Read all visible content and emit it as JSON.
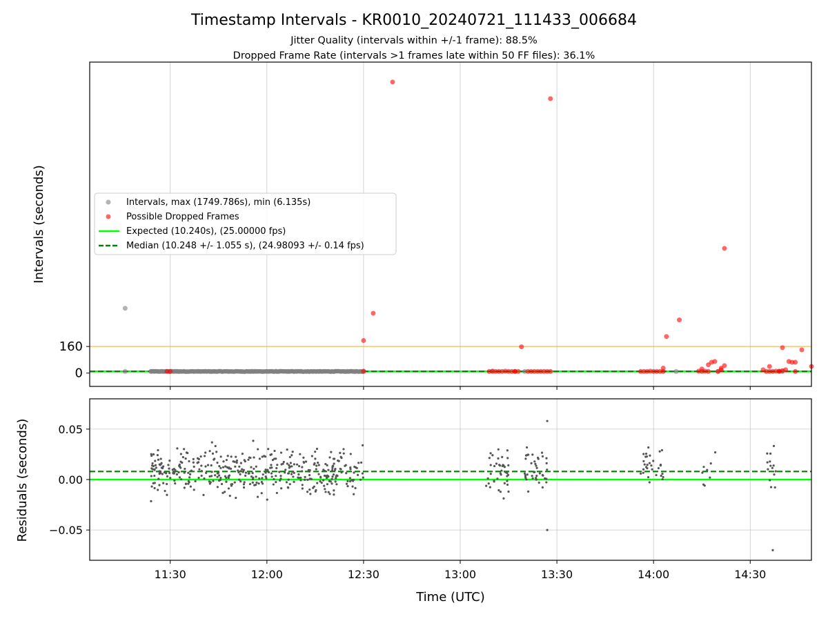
{
  "chart_data": {
    "title": "Timestamp Intervals - KR0010_20240721_111433_006684",
    "subtitle_lines": [
      "Jitter Quality (intervals within +/-1 frame): 88.5%",
      "Dropped Frame Rate (intervals >1 frames late within 50 FF files): 36.1%"
    ],
    "xlabel": "Time (UTC)",
    "xtick_labels": [
      "11:30",
      "12:00",
      "12:30",
      "13:00",
      "13:30",
      "14:00",
      "14:30"
    ],
    "xlim": [
      "11:05",
      "14:49"
    ],
    "grid": true,
    "colors": {
      "intervals": "#808080",
      "dropped": "#ff0000",
      "expected": "#00ff00",
      "median": "#008000",
      "threshold": "#ffa500",
      "residuals": "#555555"
    },
    "top": {
      "type": "scatter",
      "ylabel": "Intervals (seconds)",
      "yticks": [
        0,
        160
      ],
      "ylim": [
        -80,
        1870
      ],
      "threshold_line": 160,
      "expected_line": 10.24,
      "median_line": 10.248,
      "legend_position": "center-left",
      "legend": [
        "Intervals, max (1749.786s), min (6.135s)",
        "Possible Dropped Frames",
        "Expected (10.240s), (25.00000 fps)",
        "Median (10.248 +/- 1.055 s), (24.98093 +/- 0.14 fps)"
      ],
      "series": [
        {
          "name": "Intervals, max (1749.786s), min (6.135s)",
          "points": [
            [
              "11:16",
              390
            ],
            [
              "11:16",
              10
            ],
            [
              "11:24",
              10
            ],
            [
              "11:30",
              10
            ],
            [
              "12:00",
              10
            ],
            [
              "12:30",
              10
            ],
            [
              "13:10",
              10
            ],
            [
              "13:20",
              10
            ],
            [
              "14:07",
              10
            ],
            [
              "14:20",
              10
            ],
            [
              "14:40",
              10
            ]
          ]
        },
        {
          "name": "Possible Dropped Frames",
          "points": [
            [
              "11:29",
              10
            ],
            [
              "11:30",
              10
            ],
            [
              "12:30",
              196
            ],
            [
              "12:30",
              12
            ],
            [
              "12:33",
              360
            ],
            [
              "12:39",
              1750
            ],
            [
              "13:09",
              10
            ],
            [
              "13:10",
              12
            ],
            [
              "13:11",
              10
            ],
            [
              "13:12",
              10
            ],
            [
              "13:13",
              10
            ],
            [
              "13:14",
              12
            ],
            [
              "13:15",
              10
            ],
            [
              "13:16",
              10
            ],
            [
              "13:17",
              10
            ],
            [
              "13:17",
              10
            ],
            [
              "13:18",
              10
            ],
            [
              "13:19",
              158
            ],
            [
              "13:21",
              10
            ],
            [
              "13:22",
              10
            ],
            [
              "13:23",
              10
            ],
            [
              "13:24",
              10
            ],
            [
              "13:25",
              10
            ],
            [
              "13:26",
              10
            ],
            [
              "13:27",
              10
            ],
            [
              "13:28",
              10
            ],
            [
              "13:28",
              1650
            ],
            [
              "13:56",
              10
            ],
            [
              "13:57",
              10
            ],
            [
              "13:58",
              10
            ],
            [
              "13:59",
              12
            ],
            [
              "14:00",
              10
            ],
            [
              "14:01",
              10
            ],
            [
              "14:02",
              10
            ],
            [
              "14:03",
              10
            ],
            [
              "14:03",
              30
            ],
            [
              "14:04",
              220
            ],
            [
              "14:08",
              320
            ],
            [
              "14:14",
              12
            ],
            [
              "14:15",
              25
            ],
            [
              "14:15",
              10
            ],
            [
              "14:16",
              12
            ],
            [
              "14:17",
              10
            ],
            [
              "14:17",
              50
            ],
            [
              "14:18",
              65
            ],
            [
              "14:19",
              70
            ],
            [
              "14:20",
              10
            ],
            [
              "14:21",
              20
            ],
            [
              "14:21",
              30
            ],
            [
              "14:22",
              45
            ],
            [
              "14:22",
              750
            ],
            [
              "14:34",
              20
            ],
            [
              "14:35",
              10
            ],
            [
              "14:36",
              10
            ],
            [
              "14:36",
              40
            ],
            [
              "14:37",
              10
            ],
            [
              "14:38",
              12
            ],
            [
              "14:39",
              10
            ],
            [
              "14:39",
              12
            ],
            [
              "14:40",
              15
            ],
            [
              "14:40",
              153
            ],
            [
              "14:41",
              20
            ],
            [
              "14:42",
              70
            ],
            [
              "14:43",
              65
            ],
            [
              "14:44",
              65
            ],
            [
              "14:44",
              10
            ],
            [
              "14:46",
              140
            ],
            [
              "14:49",
              40
            ]
          ]
        }
      ]
    },
    "bottom": {
      "type": "scatter",
      "ylabel": "Residuals (seconds)",
      "yticks": [
        -0.05,
        0.0,
        0.05
      ],
      "ytick_labels": [
        "−0.05",
        "0.00",
        "0.05"
      ],
      "ylim": [
        -0.08,
        0.08
      ],
      "expected_line": 0.0,
      "median_line": 0.008,
      "clusters": [
        {
          "start": "11:24",
          "end": "12:30",
          "n": 420
        },
        {
          "start": "13:08",
          "end": "13:15",
          "n": 40
        },
        {
          "start": "13:20",
          "end": "13:27",
          "n": 40
        },
        {
          "start": "13:56",
          "end": "14:03",
          "n": 30
        },
        {
          "start": "14:14",
          "end": "14:20",
          "n": 8
        },
        {
          "start": "14:35",
          "end": "14:38",
          "n": 14
        }
      ],
      "outliers": [
        [
          "13:27",
          0.058
        ],
        [
          "13:27",
          -0.05
        ],
        [
          "14:37",
          -0.07
        ]
      ]
    }
  }
}
